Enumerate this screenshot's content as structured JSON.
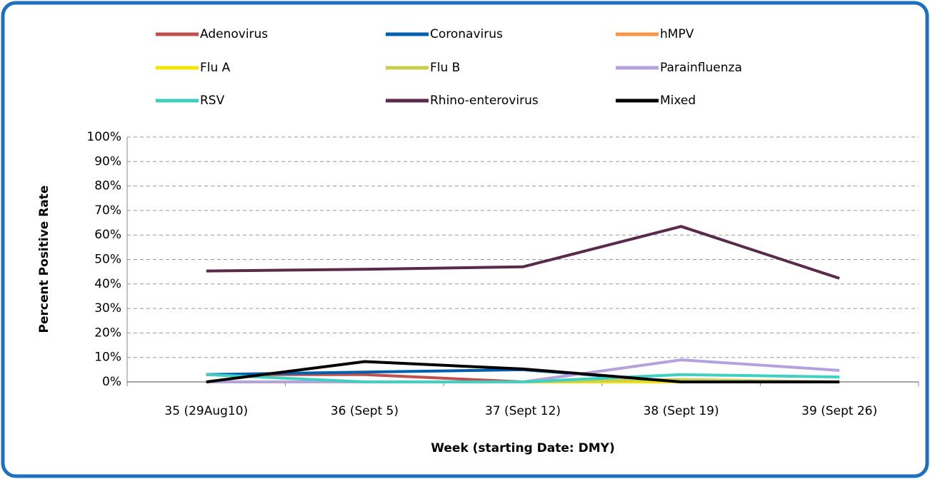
{
  "chart_data": {
    "type": "line",
    "x_label": "Week (starting Date: DMY)",
    "y_label": "Percent Positive Rate",
    "categories": [
      "35 (29Aug10)",
      "36 (Sept 5)",
      "37 (Sept 12)",
      "38 (Sept 19)",
      "39 (Sept 26)"
    ],
    "series": [
      {
        "name": "Adenovirus",
        "color": "#c0504d",
        "values": [
          3,
          3,
          0,
          0,
          0
        ]
      },
      {
        "name": "Coronavirus",
        "color": "#0060b0",
        "values": [
          3,
          4,
          5,
          0,
          0
        ]
      },
      {
        "name": "hMPV",
        "color": "#f79646",
        "values": [
          0,
          0,
          0,
          0,
          0
        ]
      },
      {
        "name": "Flu A",
        "color": "#f5e400",
        "values": [
          0,
          0,
          0,
          0,
          0
        ]
      },
      {
        "name": "Flu B",
        "color": "#c8cf4f",
        "values": [
          0,
          0,
          0,
          1,
          0
        ]
      },
      {
        "name": "Parainfluenza",
        "color": "#b3a2dc",
        "values": [
          0,
          0,
          0,
          9,
          4.7
        ]
      },
      {
        "name": "RSV",
        "color": "#40d0c0",
        "values": [
          3,
          0,
          0,
          3,
          2
        ]
      },
      {
        "name": "Rhino-enterovirus",
        "color": "#5a2a4a",
        "values": [
          45.3,
          46,
          47,
          63.5,
          42.3
        ]
      },
      {
        "name": "Mixed",
        "color": "#000000",
        "values": [
          0,
          8.3,
          5.3,
          0,
          0
        ]
      }
    ],
    "ylim": [
      0,
      100
    ],
    "yticks": [
      {
        "value": 0,
        "label": "0%"
      },
      {
        "value": 10,
        "label": "10%"
      },
      {
        "value": 20,
        "label": "20%"
      },
      {
        "value": 30,
        "label": "30%"
      },
      {
        "value": 40,
        "label": "40%"
      },
      {
        "value": 50,
        "label": "50%"
      },
      {
        "value": 60,
        "label": "60%"
      },
      {
        "value": 70,
        "label": "70%"
      },
      {
        "value": 80,
        "label": "80%"
      },
      {
        "value": 90,
        "label": "90%"
      },
      {
        "value": 100,
        "label": "100%"
      }
    ],
    "grid": true,
    "legend": "top"
  }
}
